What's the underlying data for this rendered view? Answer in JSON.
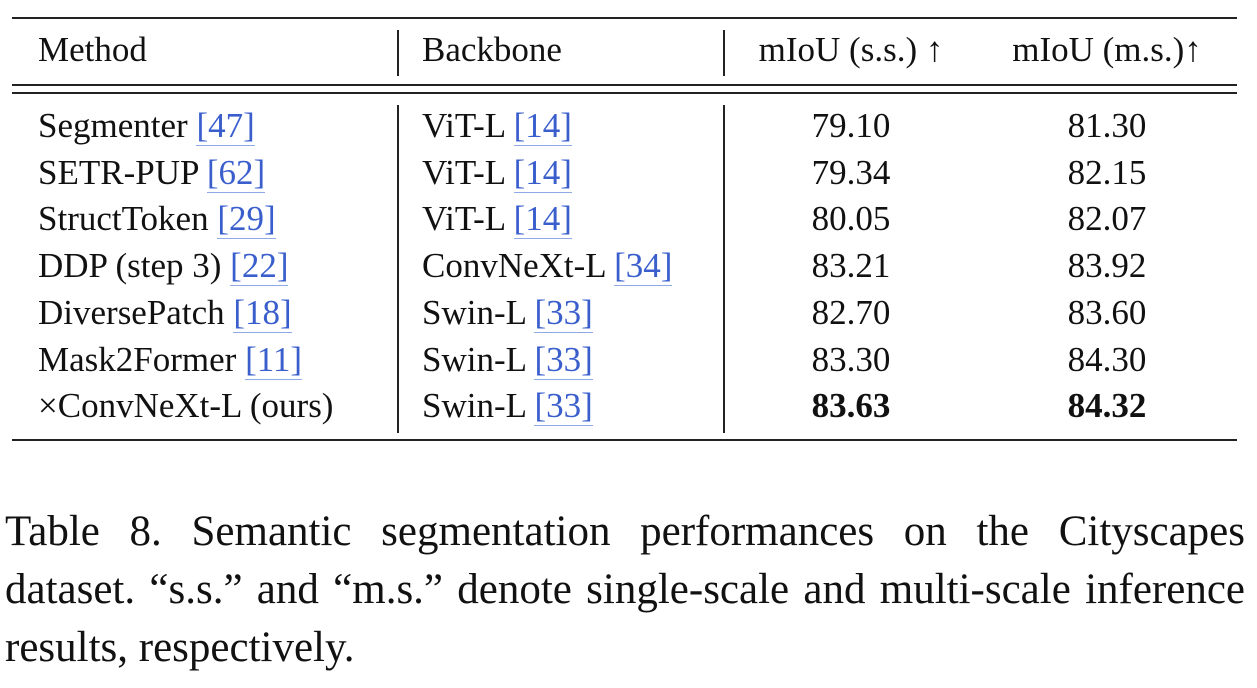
{
  "table": {
    "columns": [
      "Method",
      "Backbone",
      "mIoU (s.s.) ↑",
      "mIoU (m.s.)↑"
    ],
    "rows": [
      {
        "method": "Segmenter",
        "method_ref": "[47]",
        "backbone": "ViT-L",
        "backbone_ref": "[14]",
        "ss": "79.10",
        "ms": "81.30"
      },
      {
        "method": "SETR-PUP",
        "method_ref": "[62]",
        "backbone": "ViT-L",
        "backbone_ref": "[14]",
        "ss": "79.34",
        "ms": "82.15"
      },
      {
        "method": "StructToken",
        "method_ref": "[29]",
        "backbone": "ViT-L",
        "backbone_ref": "[14]",
        "ss": "80.05",
        "ms": "82.07"
      },
      {
        "method": "DDP (step 3)",
        "method_ref": "[22]",
        "backbone": "ConvNeXt-L",
        "backbone_ref": "[34]",
        "ss": "83.21",
        "ms": "83.92"
      },
      {
        "method": "DiversePatch",
        "method_ref": "[18]",
        "backbone": "Swin-L",
        "backbone_ref": "[33]",
        "ss": "82.70",
        "ms": "83.60"
      },
      {
        "method": "Mask2Former",
        "method_ref": "[11]",
        "backbone": "Swin-L",
        "backbone_ref": "[33]",
        "ss": "83.30",
        "ms": "84.30"
      },
      {
        "method": "×ConvNeXt-L (ours)",
        "method_ref": null,
        "backbone": "Swin-L",
        "backbone_ref": "[33]",
        "ss": "83.63",
        "ms": "84.32"
      }
    ]
  },
  "caption": "Table 8. Semantic segmentation performances on the Cityscapes dataset. “s.s.” and “m.s.” denote single-scale and multi-scale inference results, respectively."
}
